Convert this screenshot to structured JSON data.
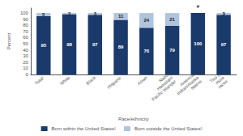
{
  "chart_data": {
    "type": "bar",
    "stacked": true,
    "categories": [
      "Total¹",
      "White",
      "Black",
      "Hispanic",
      "Asian",
      "Native\nHawaiian/\nPacific Islander",
      "American\nIndian/Alaska\nNative",
      "Two or\nmore\nraces"
    ],
    "series": [
      {
        "name": "Born within the United States¹",
        "color": "#1a3a6b",
        "values": [
          95,
          98,
          97,
          89,
          76,
          79,
          100,
          97
        ]
      },
      {
        "name": "Born outside the United States²",
        "color": "#b0c4de",
        "values": [
          5,
          2,
          3,
          11,
          24,
          21,
          0,
          3
        ],
        "value_labels": [
          "5",
          "2",
          "3",
          "11",
          "24",
          "21",
          "#",
          "3"
        ]
      }
    ],
    "xlabel": "Race/ethnicity",
    "ylabel": "Percent",
    "ylim": [
      0,
      108
    ],
    "yticks": [
      0,
      10,
      20,
      30,
      40,
      50,
      60,
      70,
      80,
      90,
      100
    ],
    "data_labels": true,
    "legend": "bottom",
    "grid": false
  }
}
